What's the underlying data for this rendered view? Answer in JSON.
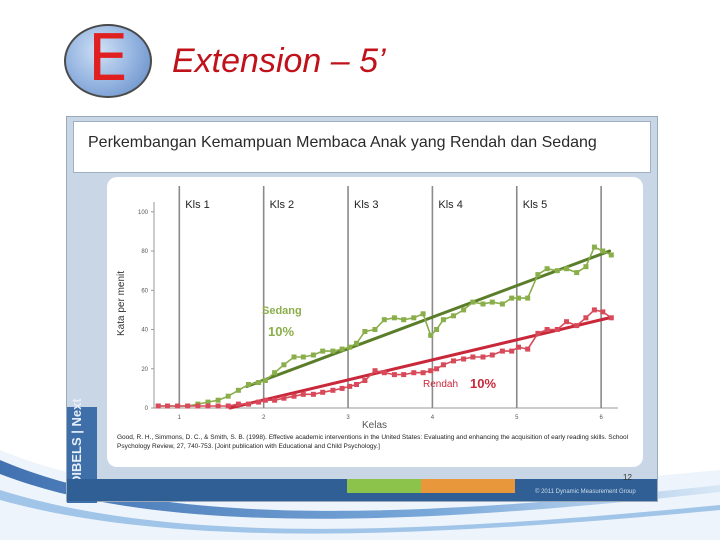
{
  "header": {
    "badge_letter": "E",
    "title": "Extension – 5’"
  },
  "panel": {
    "title": "Perkembangan Kemampuan Membaca Anak yang Rendah dan Sedang",
    "brand": "DIBELS | Next",
    "citation": "Good, R. H., Simmons, D. C., & Smith, S. B. (1998). Effective academic interventions in the United States: Evaluating and enhancing the acquisition of early reading skills. School Psychology Review, 27, 740-753. [Joint publication with Educational and Child Psychology.]",
    "page_number": "12",
    "copyright": "© 2011 Dynamic Measurement Group"
  },
  "colors": {
    "title_red": "#c0121a",
    "sedang_green": "#8aae4a",
    "sedang_trend": "#5a7d2a",
    "rendah_red": "#d84a5a",
    "rendah_trend": "#c8283a",
    "grade_line": "#8a8a8a"
  },
  "chart_data": {
    "type": "line",
    "title": "Perkembangan Kemampuan Membaca Anak yang Rendah dan Sedang",
    "xlabel": "Kelas",
    "ylabel": "Kata per menit",
    "xlim": [
      0.7,
      6.2
    ],
    "ylim": [
      0,
      105
    ],
    "x_ticks": [
      "1",
      "2",
      "3",
      "4",
      "5",
      "6"
    ],
    "y_ticks": [
      "0",
      "20",
      "40",
      "60",
      "80",
      "100"
    ],
    "grade_labels": [
      "Kls 1",
      "Kls 2",
      "Kls 3",
      "Kls 4",
      "Kls 5"
    ],
    "annotations": {
      "sedang_label": "Sedang",
      "sedang_pct": "10%",
      "rendah_label": "Rendah",
      "rendah_pct": "10%"
    },
    "series": [
      {
        "name": "Sedang",
        "points": [
          [
            0.75,
            1
          ],
          [
            0.86,
            1
          ],
          [
            0.98,
            1
          ],
          [
            1.1,
            1
          ],
          [
            1.22,
            2
          ],
          [
            1.34,
            3
          ],
          [
            1.46,
            4
          ],
          [
            1.58,
            6
          ],
          [
            1.7,
            9
          ],
          [
            1.82,
            12
          ],
          [
            1.94,
            13
          ],
          [
            2.02,
            14
          ],
          [
            2.13,
            18
          ],
          [
            2.24,
            22
          ],
          [
            2.36,
            26
          ],
          [
            2.47,
            26
          ],
          [
            2.59,
            27
          ],
          [
            2.7,
            29
          ],
          [
            2.82,
            29
          ],
          [
            2.93,
            30
          ],
          [
            3.02,
            31
          ],
          [
            3.1,
            33
          ],
          [
            3.2,
            39
          ],
          [
            3.32,
            40
          ],
          [
            3.43,
            45
          ],
          [
            3.55,
            46
          ],
          [
            3.66,
            45
          ],
          [
            3.78,
            46
          ],
          [
            3.89,
            48
          ],
          [
            3.98,
            37
          ],
          [
            4.05,
            40
          ],
          [
            4.13,
            45
          ],
          [
            4.25,
            47
          ],
          [
            4.37,
            50
          ],
          [
            4.48,
            54
          ],
          [
            4.6,
            53
          ],
          [
            4.71,
            54
          ],
          [
            4.83,
            53
          ],
          [
            4.94,
            56
          ],
          [
            5.02,
            56
          ],
          [
            5.13,
            56
          ],
          [
            5.25,
            68
          ],
          [
            5.36,
            71
          ],
          [
            5.48,
            70
          ],
          [
            5.59,
            71
          ],
          [
            5.71,
            69
          ],
          [
            5.82,
            72
          ],
          [
            5.92,
            82
          ],
          [
            6.02,
            80
          ],
          [
            6.12,
            78
          ]
        ]
      },
      {
        "name": "Rendah",
        "points": [
          [
            0.75,
            1
          ],
          [
            0.86,
            1
          ],
          [
            0.98,
            1
          ],
          [
            1.1,
            1
          ],
          [
            1.22,
            1
          ],
          [
            1.34,
            1
          ],
          [
            1.46,
            1
          ],
          [
            1.58,
            1
          ],
          [
            1.7,
            2
          ],
          [
            1.82,
            2
          ],
          [
            1.94,
            3
          ],
          [
            2.02,
            4
          ],
          [
            2.13,
            4
          ],
          [
            2.24,
            5
          ],
          [
            2.36,
            6
          ],
          [
            2.47,
            7
          ],
          [
            2.59,
            7
          ],
          [
            2.7,
            8
          ],
          [
            2.82,
            9
          ],
          [
            2.93,
            10
          ],
          [
            3.02,
            11
          ],
          [
            3.1,
            12
          ],
          [
            3.2,
            14
          ],
          [
            3.32,
            19
          ],
          [
            3.43,
            18
          ],
          [
            3.55,
            17
          ],
          [
            3.66,
            17
          ],
          [
            3.78,
            18
          ],
          [
            3.89,
            18
          ],
          [
            3.98,
            19
          ],
          [
            4.05,
            20
          ],
          [
            4.13,
            22
          ],
          [
            4.25,
            24
          ],
          [
            4.37,
            25
          ],
          [
            4.48,
            26
          ],
          [
            4.6,
            26
          ],
          [
            4.71,
            27
          ],
          [
            4.83,
            29
          ],
          [
            4.94,
            29
          ],
          [
            5.02,
            31
          ],
          [
            5.13,
            30
          ],
          [
            5.25,
            38
          ],
          [
            5.36,
            40
          ],
          [
            5.48,
            40
          ],
          [
            5.59,
            44
          ],
          [
            5.71,
            42
          ],
          [
            5.82,
            46
          ],
          [
            5.92,
            50
          ],
          [
            6.02,
            49
          ],
          [
            6.12,
            46
          ]
        ]
      }
    ],
    "trendlines": [
      {
        "name": "Sedang",
        "from": [
          1.8,
          11
        ],
        "to": [
          6.1,
          80
        ]
      },
      {
        "name": "Rendah",
        "from": [
          1.6,
          0
        ],
        "to": [
          6.1,
          46
        ]
      }
    ]
  }
}
